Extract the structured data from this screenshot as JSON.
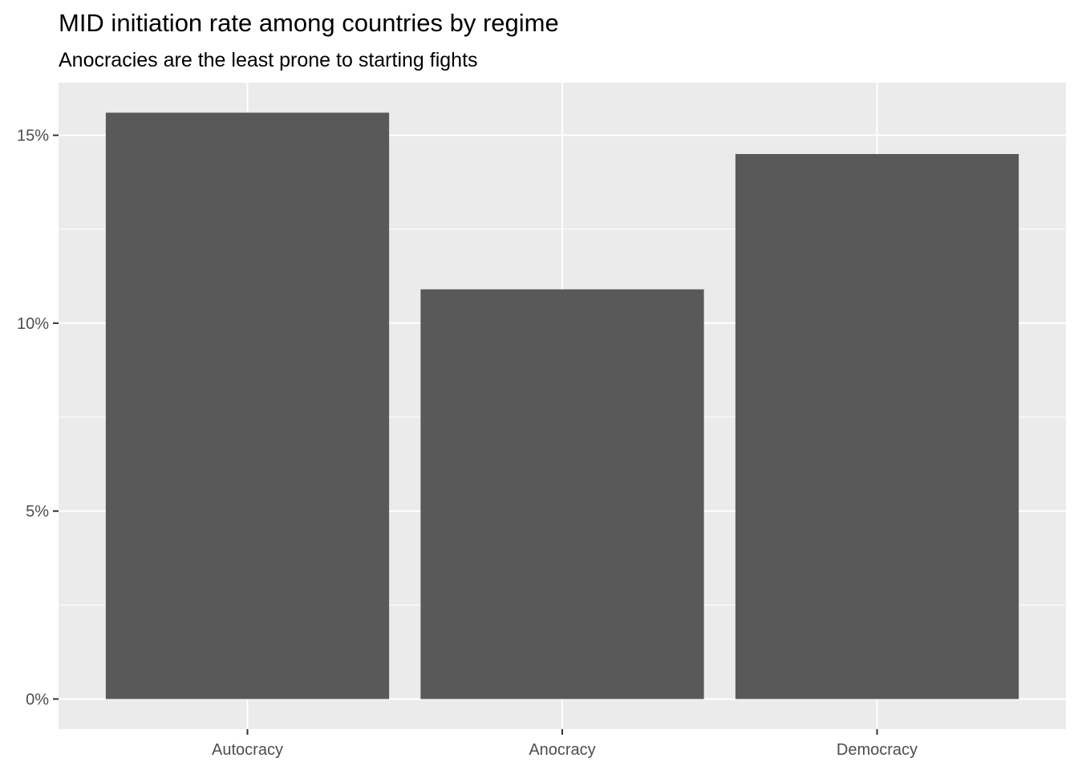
{
  "chart_data": {
    "type": "bar",
    "title": "MID initiation rate among countries by regime",
    "subtitle": "Anocracies are the least prone to starting fights",
    "xlabel": "",
    "ylabel": "",
    "categories": [
      "Autocracy",
      "Anocracy",
      "Democracy"
    ],
    "values": [
      15.6,
      10.9,
      14.5
    ],
    "value_unit": "percent",
    "ylim": [
      -0.8,
      16.4
    ],
    "yticks": [
      0,
      5,
      10,
      15
    ],
    "ytick_labels": [
      "0%",
      "5%",
      "10%",
      "15%"
    ],
    "grid": true,
    "legend": "none",
    "colors": {
      "panel_background": "#ebebeb",
      "grid_line": "#ffffff",
      "bar_fill": "#595959",
      "tick_label": "#4d4d4d",
      "tick_mark": "#333333"
    }
  }
}
